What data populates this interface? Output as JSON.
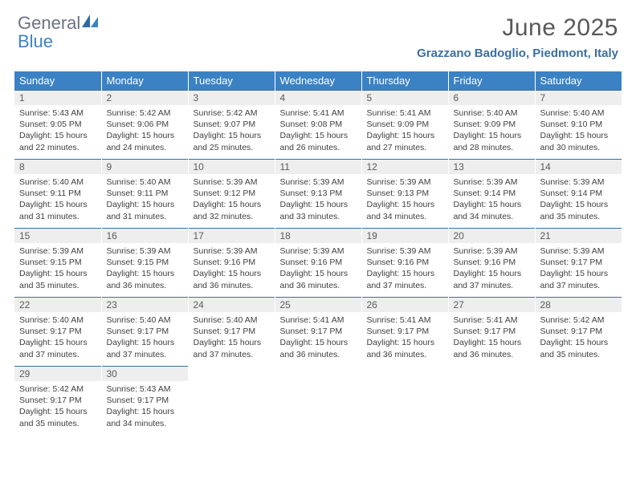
{
  "logo": {
    "part1": "General",
    "part2": "Blue"
  },
  "title": "June 2025",
  "location": "Grazzano Badoglio, Piedmont, Italy",
  "colors": {
    "header_bg": "#3b82c4",
    "header_text": "#ffffff",
    "daynum_bg": "#eeeeee",
    "daynum_border": "#3b6fa0",
    "body_text": "#404040",
    "title_text": "#595959",
    "location_text": "#3b6fa0",
    "logo_gray": "#6b7280",
    "logo_blue": "#3b82c4"
  },
  "weekdays": [
    "Sunday",
    "Monday",
    "Tuesday",
    "Wednesday",
    "Thursday",
    "Friday",
    "Saturday"
  ],
  "weeks": [
    [
      {
        "n": "1",
        "sr": "5:43 AM",
        "ss": "9:05 PM",
        "dh": "15",
        "dm": "22"
      },
      {
        "n": "2",
        "sr": "5:42 AM",
        "ss": "9:06 PM",
        "dh": "15",
        "dm": "24"
      },
      {
        "n": "3",
        "sr": "5:42 AM",
        "ss": "9:07 PM",
        "dh": "15",
        "dm": "25"
      },
      {
        "n": "4",
        "sr": "5:41 AM",
        "ss": "9:08 PM",
        "dh": "15",
        "dm": "26"
      },
      {
        "n": "5",
        "sr": "5:41 AM",
        "ss": "9:09 PM",
        "dh": "15",
        "dm": "27"
      },
      {
        "n": "6",
        "sr": "5:40 AM",
        "ss": "9:09 PM",
        "dh": "15",
        "dm": "28"
      },
      {
        "n": "7",
        "sr": "5:40 AM",
        "ss": "9:10 PM",
        "dh": "15",
        "dm": "30"
      }
    ],
    [
      {
        "n": "8",
        "sr": "5:40 AM",
        "ss": "9:11 PM",
        "dh": "15",
        "dm": "31"
      },
      {
        "n": "9",
        "sr": "5:40 AM",
        "ss": "9:11 PM",
        "dh": "15",
        "dm": "31"
      },
      {
        "n": "10",
        "sr": "5:39 AM",
        "ss": "9:12 PM",
        "dh": "15",
        "dm": "32"
      },
      {
        "n": "11",
        "sr": "5:39 AM",
        "ss": "9:13 PM",
        "dh": "15",
        "dm": "33"
      },
      {
        "n": "12",
        "sr": "5:39 AM",
        "ss": "9:13 PM",
        "dh": "15",
        "dm": "34"
      },
      {
        "n": "13",
        "sr": "5:39 AM",
        "ss": "9:14 PM",
        "dh": "15",
        "dm": "34"
      },
      {
        "n": "14",
        "sr": "5:39 AM",
        "ss": "9:14 PM",
        "dh": "15",
        "dm": "35"
      }
    ],
    [
      {
        "n": "15",
        "sr": "5:39 AM",
        "ss": "9:15 PM",
        "dh": "15",
        "dm": "35"
      },
      {
        "n": "16",
        "sr": "5:39 AM",
        "ss": "9:15 PM",
        "dh": "15",
        "dm": "36"
      },
      {
        "n": "17",
        "sr": "5:39 AM",
        "ss": "9:16 PM",
        "dh": "15",
        "dm": "36"
      },
      {
        "n": "18",
        "sr": "5:39 AM",
        "ss": "9:16 PM",
        "dh": "15",
        "dm": "36"
      },
      {
        "n": "19",
        "sr": "5:39 AM",
        "ss": "9:16 PM",
        "dh": "15",
        "dm": "37"
      },
      {
        "n": "20",
        "sr": "5:39 AM",
        "ss": "9:16 PM",
        "dh": "15",
        "dm": "37"
      },
      {
        "n": "21",
        "sr": "5:39 AM",
        "ss": "9:17 PM",
        "dh": "15",
        "dm": "37"
      }
    ],
    [
      {
        "n": "22",
        "sr": "5:40 AM",
        "ss": "9:17 PM",
        "dh": "15",
        "dm": "37"
      },
      {
        "n": "23",
        "sr": "5:40 AM",
        "ss": "9:17 PM",
        "dh": "15",
        "dm": "37"
      },
      {
        "n": "24",
        "sr": "5:40 AM",
        "ss": "9:17 PM",
        "dh": "15",
        "dm": "37"
      },
      {
        "n": "25",
        "sr": "5:41 AM",
        "ss": "9:17 PM",
        "dh": "15",
        "dm": "36"
      },
      {
        "n": "26",
        "sr": "5:41 AM",
        "ss": "9:17 PM",
        "dh": "15",
        "dm": "36"
      },
      {
        "n": "27",
        "sr": "5:41 AM",
        "ss": "9:17 PM",
        "dh": "15",
        "dm": "36"
      },
      {
        "n": "28",
        "sr": "5:42 AM",
        "ss": "9:17 PM",
        "dh": "15",
        "dm": "35"
      }
    ],
    [
      {
        "n": "29",
        "sr": "5:42 AM",
        "ss": "9:17 PM",
        "dh": "15",
        "dm": "35"
      },
      {
        "n": "30",
        "sr": "5:43 AM",
        "ss": "9:17 PM",
        "dh": "15",
        "dm": "34"
      },
      null,
      null,
      null,
      null,
      null
    ]
  ],
  "labels": {
    "sunrise": "Sunrise:",
    "sunset": "Sunset:",
    "daylight_prefix": "Daylight:",
    "hours_word": "hours",
    "and_word": "and",
    "minutes_word": "minutes."
  }
}
